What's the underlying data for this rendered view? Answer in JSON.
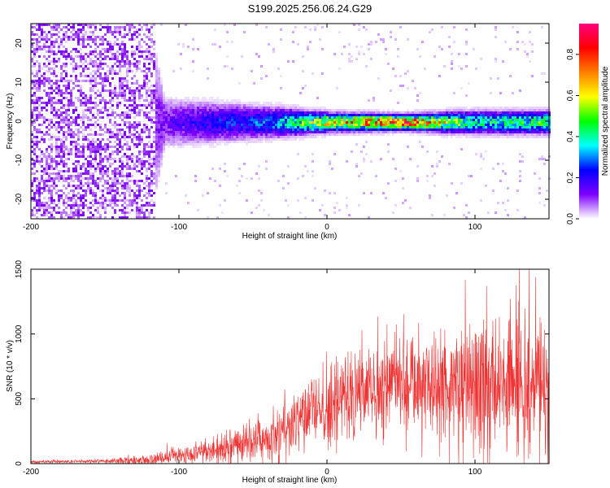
{
  "title": "S199.2025.256.06.24.G29",
  "chart_data": [
    {
      "type": "heatmap",
      "name": "spectrogram",
      "xlabel": "Height of straight line (km)",
      "ylabel": "Frequency (Hz)",
      "xlim": [
        -200,
        150
      ],
      "ylim": [
        -25,
        25
      ],
      "xticks": [
        -200,
        -100,
        0,
        100
      ],
      "xtick_labels": [
        "-200",
        "-100",
        "0",
        "100"
      ],
      "yticks": [
        -20,
        -10,
        0,
        10,
        20
      ],
      "ytick_labels": [
        "-20",
        "-10",
        "0",
        "10",
        "20"
      ],
      "colorbar": {
        "label": "Normalized spectral amplitude",
        "range": [
          0,
          0.95
        ],
        "ticks": [
          0,
          0.2,
          0.4,
          0.6,
          0.8
        ],
        "tick_labels": [
          "0.0",
          "0.2",
          "0.4",
          "0.6",
          "0.8"
        ],
        "colors": [
          "#ffffff",
          "#7f00ff",
          "#0000ff",
          "#00ffff",
          "#00ff00",
          "#ffff00",
          "#ff7f00",
          "#ff0000",
          "#ff0080"
        ]
      },
      "description_points": [
        {
          "x": -200,
          "band_halfwidth_hz": 25,
          "peak_amplitude": 0.1
        },
        {
          "x": -120,
          "band_halfwidth_hz": 25,
          "peak_amplitude": 0.1
        },
        {
          "x": -110,
          "band_halfwidth_hz": 6,
          "peak_amplitude": 0.15
        },
        {
          "x": -80,
          "band_halfwidth_hz": 5,
          "peak_amplitude": 0.25
        },
        {
          "x": -40,
          "band_halfwidth_hz": 4,
          "peak_amplitude": 0.3
        },
        {
          "x": 0,
          "band_halfwidth_hz": 2.5,
          "peak_amplitude": 0.7
        },
        {
          "x": 50,
          "band_halfwidth_hz": 2,
          "peak_amplitude": 0.9
        },
        {
          "x": 100,
          "band_halfwidth_hz": 3,
          "peak_amplitude": 0.45
        },
        {
          "x": 150,
          "band_halfwidth_hz": 3,
          "peak_amplitude": 0.5
        }
      ]
    },
    {
      "type": "line",
      "name": "snr",
      "xlabel": "Height of straight line (km)",
      "ylabel": "SNR (10 * v/v)",
      "xlim": [
        -200,
        150
      ],
      "ylim": [
        0,
        1500
      ],
      "xticks": [
        -200,
        -100,
        0,
        100
      ],
      "xtick_labels": [
        "-200",
        "-100",
        "0",
        "100"
      ],
      "yticks": [
        0,
        500,
        1000,
        1500
      ],
      "ytick_labels": [
        "0",
        "500",
        "1000",
        "1500"
      ],
      "color": "#ee3333",
      "envelope_x": [
        -200,
        -150,
        -120,
        -100,
        -80,
        -60,
        -40,
        -20,
        0,
        20,
        40,
        60,
        80,
        100,
        120,
        130,
        150
      ],
      "envelope_mean": [
        15,
        18,
        30,
        60,
        90,
        140,
        200,
        320,
        420,
        550,
        650,
        650,
        580,
        600,
        650,
        620,
        600
      ],
      "envelope_amp": [
        10,
        15,
        40,
        60,
        80,
        120,
        180,
        250,
        320,
        350,
        380,
        400,
        450,
        500,
        550,
        520,
        450
      ]
    }
  ]
}
